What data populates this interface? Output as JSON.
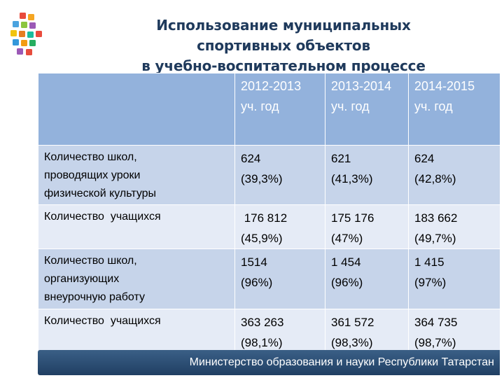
{
  "title": {
    "line1": "Использование муниципальных",
    "line2": "спортивных объектов",
    "line3": "в учебно-воспитательном процессе"
  },
  "table": {
    "headers": [
      {
        "line1": "2012-2013",
        "line2": "уч. год"
      },
      {
        "line1": "2013-2014",
        "line2": "уч. год"
      },
      {
        "line1": "2014-2015",
        "line2": "уч. год"
      }
    ],
    "rows": [
      {
        "label": [
          "Количество школ,",
          "проводящих уроки",
          "физической культуры"
        ],
        "cells": [
          {
            "line1": "624",
            "line2": "(39,3%)"
          },
          {
            "line1": "621",
            "line2": "(41,3%)"
          },
          {
            "line1": "624",
            "line2": "(42,8%)"
          }
        ]
      },
      {
        "label": [
          "Количество  учащихся"
        ],
        "cells": [
          {
            "line1": " 176 812",
            "line2": "(45,9%)"
          },
          {
            "line1": "175 176",
            "line2": "(47%)"
          },
          {
            "line1": "183 662",
            "line2": "(49,7%)"
          }
        ]
      },
      {
        "label": [
          "Количество школ,",
          "организующих",
          "внеурочную работу"
        ],
        "cells": [
          {
            "line1": "1514",
            "line2": "(96%)"
          },
          {
            "line1": "1 454",
            "line2": "(96%)"
          },
          {
            "line1": "1 415",
            "line2": "(97%)"
          }
        ]
      },
      {
        "label": [
          "Количество  учащихся"
        ],
        "cells": [
          {
            "line1": "363 263",
            "line2": "(98,1%)"
          },
          {
            "line1": "361 572",
            "line2": "(98,3%)"
          },
          {
            "line1": "364 735",
            "line2": "(98,7%)"
          }
        ]
      }
    ]
  },
  "footer": {
    "text": "Министерство образования и науки Республики Татарстан"
  },
  "colors": {
    "header_bg": "#93b2dc",
    "row_dark": "#c6d4ea",
    "row_light": "#e5ebf6",
    "title": "#1f3a5c",
    "footer_bg": "#2b4d74"
  }
}
